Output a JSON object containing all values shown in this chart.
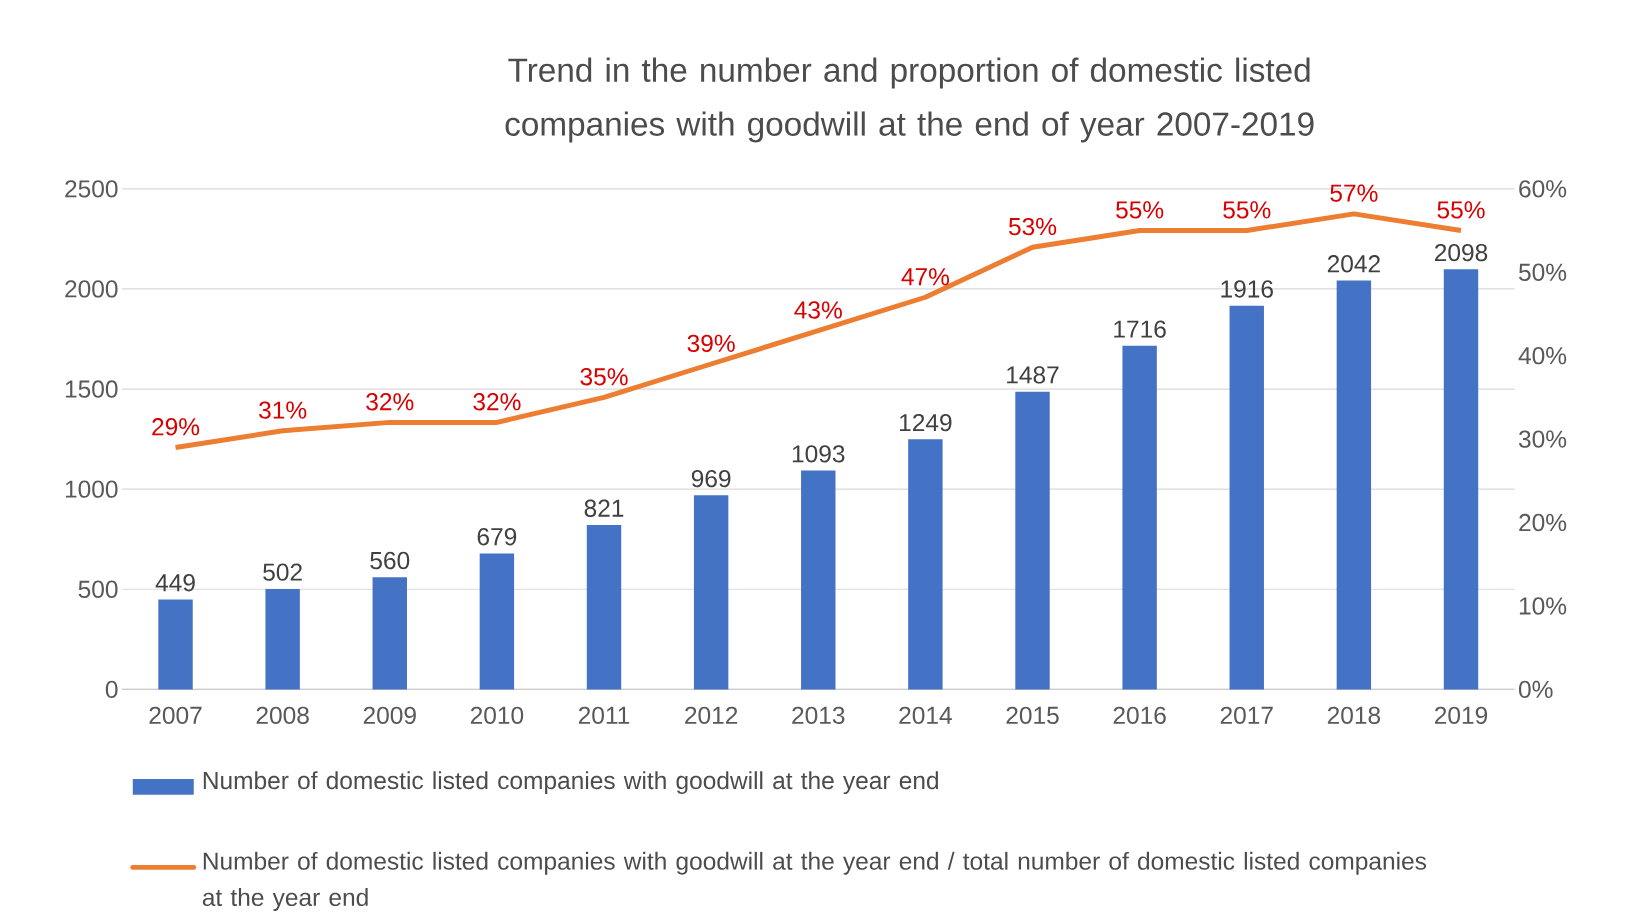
{
  "chart_data": {
    "type": "bar",
    "title": "Trend in the number and proportion of domestic listed companies with goodwill at the end of  year 2007-2019",
    "categories": [
      "2007",
      "2008",
      "2009",
      "2010",
      "2011",
      "2012",
      "2013",
      "2014",
      "2015",
      "2016",
      "2017",
      "2018",
      "2019"
    ],
    "series": [
      {
        "name": "Number of domestic listed companies with goodwill at the year end",
        "color": "#4472c4",
        "values": [
          449,
          502,
          560,
          679,
          821,
          969,
          1093,
          1249,
          1487,
          1716,
          1916,
          2042,
          2098
        ],
        "value_labels": [
          "449",
          "502",
          "560",
          "679",
          "821",
          "969",
          "1093",
          "1249",
          "1487",
          "1716",
          "1916",
          "2042",
          "2098"
        ]
      },
      {
        "name": "Number of domestic listed companies with goodwill at the year end / total number of domestic listed companies at the year end",
        "type": "line",
        "axis": "y2",
        "color": "#ed7d31",
        "values": [
          29,
          31,
          32,
          32,
          35,
          39,
          43,
          47,
          53,
          55,
          55,
          57,
          55
        ],
        "value_labels": [
          "29%",
          "31%",
          "32%",
          "32%",
          "35%",
          "39%",
          "43%",
          "47%",
          "53%",
          "55%",
          "55%",
          "57%",
          "55%"
        ]
      }
    ],
    "ylim": [
      0,
      2500
    ],
    "yticks": [
      0,
      500,
      1000,
      1500,
      2000,
      2500
    ],
    "y2lim": [
      0,
      60
    ],
    "y2ticks": [
      {
        "value": 0,
        "label": "0%"
      },
      {
        "value": 10,
        "label": "10%"
      },
      {
        "value": 20,
        "label": "20%"
      },
      {
        "value": 30,
        "label": "30%"
      },
      {
        "value": 40,
        "label": "40%"
      },
      {
        "value": 50,
        "label": "50%"
      },
      {
        "value": 60,
        "label": "60%"
      }
    ],
    "grid": "y",
    "legend": "bottom",
    "marker": "none"
  }
}
